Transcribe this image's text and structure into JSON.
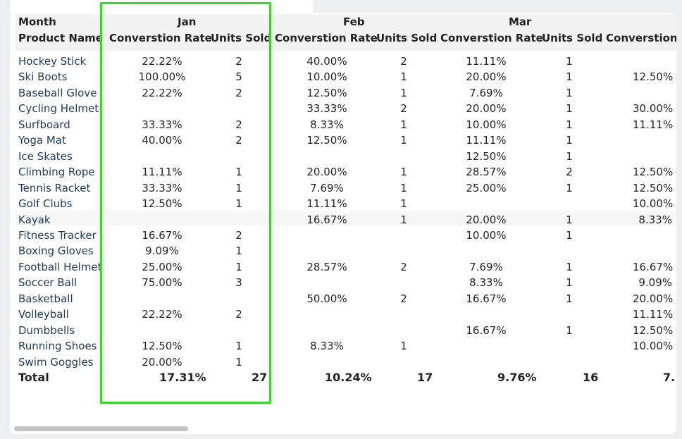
{
  "header": {
    "row1_label": "Month",
    "row2_label": "Product Name",
    "months": [
      "Jan",
      "Feb",
      "Mar"
    ],
    "col_conv": "Converstion Rate",
    "col_units": "Units Sold",
    "col_partial": "Converstion"
  },
  "rows": [
    {
      "name": "Hockey Stick",
      "jan_rate": "22.22%",
      "jan_units": "2",
      "feb_rate": "40.00%",
      "feb_units": "2",
      "mar_rate": "11.11%",
      "mar_units": "1",
      "apr_rate": ""
    },
    {
      "name": "Ski Boots",
      "jan_rate": "100.00%",
      "jan_units": "5",
      "feb_rate": "10.00%",
      "feb_units": "1",
      "mar_rate": "20.00%",
      "mar_units": "1",
      "apr_rate": "12.50%"
    },
    {
      "name": "Baseball Glove",
      "jan_rate": "22.22%",
      "jan_units": "2",
      "feb_rate": "12.50%",
      "feb_units": "1",
      "mar_rate": "7.69%",
      "mar_units": "1",
      "apr_rate": ""
    },
    {
      "name": "Cycling Helmet",
      "jan_rate": "",
      "jan_units": "",
      "feb_rate": "33.33%",
      "feb_units": "2",
      "mar_rate": "20.00%",
      "mar_units": "1",
      "apr_rate": "30.00%"
    },
    {
      "name": "Surfboard",
      "jan_rate": "33.33%",
      "jan_units": "2",
      "feb_rate": "8.33%",
      "feb_units": "1",
      "mar_rate": "10.00%",
      "mar_units": "1",
      "apr_rate": "11.11%"
    },
    {
      "name": "Yoga Mat",
      "jan_rate": "40.00%",
      "jan_units": "2",
      "feb_rate": "12.50%",
      "feb_units": "1",
      "mar_rate": "11.11%",
      "mar_units": "1",
      "apr_rate": ""
    },
    {
      "name": "Ice Skates",
      "jan_rate": "",
      "jan_units": "",
      "feb_rate": "",
      "feb_units": "",
      "mar_rate": "12.50%",
      "mar_units": "1",
      "apr_rate": ""
    },
    {
      "name": "Climbing Rope",
      "jan_rate": "11.11%",
      "jan_units": "1",
      "feb_rate": "20.00%",
      "feb_units": "1",
      "mar_rate": "28.57%",
      "mar_units": "2",
      "apr_rate": "12.50%"
    },
    {
      "name": "Tennis Racket",
      "jan_rate": "33.33%",
      "jan_units": "1",
      "feb_rate": "7.69%",
      "feb_units": "1",
      "mar_rate": "25.00%",
      "mar_units": "1",
      "apr_rate": "12.50%"
    },
    {
      "name": "Golf Clubs",
      "jan_rate": "12.50%",
      "jan_units": "1",
      "feb_rate": "11.11%",
      "feb_units": "1",
      "mar_rate": "",
      "mar_units": "",
      "apr_rate": "10.00%"
    },
    {
      "name": "Kayak",
      "jan_rate": "",
      "jan_units": "",
      "feb_rate": "16.67%",
      "feb_units": "1",
      "mar_rate": "20.00%",
      "mar_units": "1",
      "apr_rate": "8.33%"
    },
    {
      "name": "Fitness Tracker",
      "jan_rate": "16.67%",
      "jan_units": "2",
      "feb_rate": "",
      "feb_units": "",
      "mar_rate": "10.00%",
      "mar_units": "1",
      "apr_rate": ""
    },
    {
      "name": "Boxing Gloves",
      "jan_rate": "9.09%",
      "jan_units": "1",
      "feb_rate": "",
      "feb_units": "",
      "mar_rate": "",
      "mar_units": "",
      "apr_rate": ""
    },
    {
      "name": "Football Helmet",
      "jan_rate": "25.00%",
      "jan_units": "1",
      "feb_rate": "28.57%",
      "feb_units": "2",
      "mar_rate": "7.69%",
      "mar_units": "1",
      "apr_rate": "16.67%"
    },
    {
      "name": "Soccer Ball",
      "jan_rate": "75.00%",
      "jan_units": "3",
      "feb_rate": "",
      "feb_units": "",
      "mar_rate": "8.33%",
      "mar_units": "1",
      "apr_rate": "9.09%"
    },
    {
      "name": "Basketball",
      "jan_rate": "",
      "jan_units": "",
      "feb_rate": "50.00%",
      "feb_units": "2",
      "mar_rate": "16.67%",
      "mar_units": "1",
      "apr_rate": "20.00%"
    },
    {
      "name": "Volleyball",
      "jan_rate": "22.22%",
      "jan_units": "2",
      "feb_rate": "",
      "feb_units": "",
      "mar_rate": "",
      "mar_units": "",
      "apr_rate": "11.11%"
    },
    {
      "name": "Dumbbells",
      "jan_rate": "",
      "jan_units": "",
      "feb_rate": "",
      "feb_units": "",
      "mar_rate": "16.67%",
      "mar_units": "1",
      "apr_rate": "12.50%"
    },
    {
      "name": "Running Shoes",
      "jan_rate": "12.50%",
      "jan_units": "1",
      "feb_rate": "8.33%",
      "feb_units": "1",
      "mar_rate": "",
      "mar_units": "",
      "apr_rate": "10.00%"
    },
    {
      "name": "Swim Goggles",
      "jan_rate": "20.00%",
      "jan_units": "1",
      "feb_rate": "",
      "feb_units": "",
      "mar_rate": "",
      "mar_units": "",
      "apr_rate": ""
    }
  ],
  "total": {
    "label": "Total",
    "jan_rate": "17.31%",
    "jan_units": "27",
    "feb_rate": "10.24%",
    "feb_units": "17",
    "mar_rate": "9.76%",
    "mar_units": "16",
    "apr_rate_partial": "7."
  },
  "colors": {
    "highlight": "#3ad62a",
    "header_band": "#f3f3f3",
    "row_label": "#1f3b57"
  }
}
